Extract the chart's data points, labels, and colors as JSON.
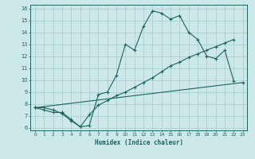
{
  "xlabel": "Humidex (Indice chaleur)",
  "bg_color": "#cce8e8",
  "grid_color": "#aacece",
  "line_color": "#1a6464",
  "xlim": [
    -0.5,
    23.5
  ],
  "ylim": [
    5.8,
    16.3
  ],
  "xticks": [
    0,
    1,
    2,
    3,
    4,
    5,
    6,
    7,
    8,
    9,
    10,
    11,
    12,
    13,
    14,
    15,
    16,
    17,
    18,
    19,
    20,
    21,
    22,
    23
  ],
  "yticks": [
    6,
    7,
    8,
    9,
    10,
    11,
    12,
    13,
    14,
    15,
    16
  ],
  "line1_x": [
    0,
    1,
    2,
    3,
    4,
    5,
    6,
    7,
    8,
    9,
    10,
    11,
    12,
    13,
    14,
    15,
    16,
    17,
    18,
    19,
    20,
    21,
    22
  ],
  "line1_y": [
    7.7,
    7.5,
    7.3,
    7.3,
    6.7,
    6.1,
    6.2,
    8.8,
    9.0,
    10.4,
    13.0,
    12.5,
    14.5,
    15.8,
    15.6,
    15.1,
    15.4,
    14.0,
    13.4,
    12.0,
    11.8,
    12.5,
    9.9
  ],
  "line2_x": [
    0,
    1,
    2,
    3,
    4,
    5,
    6,
    7,
    8,
    9,
    10,
    11,
    12,
    13,
    14,
    15,
    16,
    17,
    18,
    19,
    20,
    21,
    22
  ],
  "line2_y": [
    7.7,
    7.7,
    7.5,
    7.2,
    6.6,
    6.1,
    7.1,
    7.9,
    8.3,
    8.7,
    9.0,
    9.4,
    9.8,
    10.2,
    10.7,
    11.2,
    11.5,
    11.9,
    12.2,
    12.5,
    12.8,
    13.1,
    13.4
  ],
  "line3_x": [
    0,
    23
  ],
  "line3_y": [
    7.7,
    9.8
  ]
}
